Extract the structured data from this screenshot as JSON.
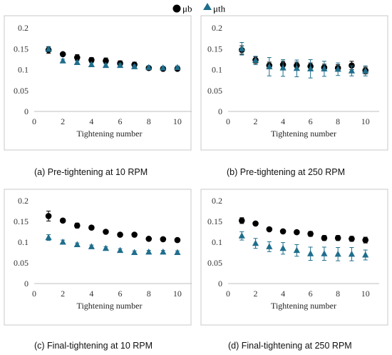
{
  "legend": {
    "items": [
      {
        "label": "μb",
        "marker": "circle",
        "color": "#000000"
      },
      {
        "label": "μth",
        "marker": "triangle",
        "color": "#1f6e8c"
      }
    ]
  },
  "colors": {
    "mu_b": "#000000",
    "mu_th": "#1f6e8c",
    "panel_border": "#bfbfbf",
    "axis": "#bfbfbf"
  },
  "chart_data": [
    {
      "type": "scatter",
      "caption": "(a)  Pre-tightening at 10 RPM",
      "xlabel": "Tightening number",
      "ylabel": "",
      "xlim": [
        0,
        11
      ],
      "ylim": [
        0,
        0.2
      ],
      "x_ticks": [
        0,
        2,
        4,
        6,
        8,
        10
      ],
      "y_ticks": [
        "0",
        "0.05",
        "0.1",
        "0.15",
        "0.2"
      ],
      "x": [
        1,
        2,
        3,
        4,
        5,
        6,
        7,
        8,
        9,
        10
      ],
      "series": [
        {
          "name": "μb",
          "values": [
            0.147,
            0.137,
            0.129,
            0.123,
            0.121,
            0.115,
            0.112,
            0.104,
            0.102,
            0.102
          ],
          "errors": [
            0.008,
            0.004,
            0.007,
            0.006,
            0.007,
            0.006,
            0.006,
            0.003,
            0.004,
            0.004
          ]
        },
        {
          "name": "μth",
          "values": [
            0.149,
            0.121,
            0.117,
            0.112,
            0.11,
            0.11,
            0.107,
            0.105,
            0.104,
            0.105
          ],
          "errors": [
            0.005,
            0.004,
            0.004,
            0.004,
            0.004,
            0.004,
            0.004,
            0.004,
            0.004,
            0.004
          ]
        }
      ]
    },
    {
      "type": "scatter",
      "caption": "(b)  Pre-tightening at 250 RPM",
      "xlabel": "Tightening number",
      "ylabel": "",
      "xlim": [
        0,
        11
      ],
      "ylim": [
        0,
        0.2
      ],
      "x_ticks": [
        0,
        2,
        4,
        6,
        8,
        10
      ],
      "y_ticks": [
        "0",
        "0.05",
        "0.1",
        "0.15",
        "0.2"
      ],
      "x": [
        1,
        2,
        3,
        4,
        5,
        6,
        7,
        8,
        9,
        10
      ],
      "series": [
        {
          "name": "μb",
          "values": [
            0.147,
            0.123,
            0.11,
            0.112,
            0.11,
            0.108,
            0.105,
            0.104,
            0.11,
            0.098
          ],
          "errors": [
            0.01,
            0.008,
            0.008,
            0.008,
            0.008,
            0.008,
            0.008,
            0.008,
            0.01,
            0.008
          ]
        },
        {
          "name": "μth",
          "values": [
            0.15,
            0.122,
            0.107,
            0.104,
            0.103,
            0.102,
            0.102,
            0.101,
            0.097,
            0.097
          ],
          "errors": [
            0.015,
            0.01,
            0.022,
            0.02,
            0.02,
            0.022,
            0.018,
            0.015,
            0.012,
            0.012
          ]
        }
      ]
    },
    {
      "type": "scatter",
      "caption": "(c)  Final-tightening at 10 RPM",
      "xlabel": "Tightening number",
      "ylabel": "",
      "xlim": [
        0,
        11
      ],
      "ylim": [
        0,
        0.2
      ],
      "x_ticks": [
        0,
        2,
        4,
        6,
        8,
        10
      ],
      "y_ticks": [
        "0",
        "0.05",
        "0.1",
        "0.15",
        "0.2"
      ],
      "x": [
        1,
        2,
        3,
        4,
        5,
        6,
        7,
        8,
        9,
        10
      ],
      "series": [
        {
          "name": "μb",
          "values": [
            0.163,
            0.152,
            0.14,
            0.135,
            0.125,
            0.118,
            0.118,
            0.108,
            0.107,
            0.105
          ],
          "errors": [
            0.012,
            0.004,
            0.006,
            0.004,
            0.004,
            0.004,
            0.004,
            0.004,
            0.004,
            0.004
          ]
        },
        {
          "name": "μth",
          "values": [
            0.111,
            0.1,
            0.094,
            0.089,
            0.085,
            0.08,
            0.075,
            0.076,
            0.076,
            0.075
          ],
          "errors": [
            0.007,
            0.005,
            0.004,
            0.004,
            0.004,
            0.004,
            0.004,
            0.004,
            0.004,
            0.004
          ]
        }
      ]
    },
    {
      "type": "scatter",
      "caption": "(d)  Final-tightening at 250 RPM",
      "xlabel": "Tightening number",
      "ylabel": "",
      "xlim": [
        0,
        11
      ],
      "ylim": [
        0,
        0.2
      ],
      "x_ticks": [
        0,
        2,
        4,
        6,
        8,
        10
      ],
      "y_ticks": [
        "0",
        "0.05",
        "0.1",
        "0.15",
        "0.2"
      ],
      "x": [
        1,
        2,
        3,
        4,
        5,
        6,
        7,
        8,
        9,
        10
      ],
      "series": [
        {
          "name": "μb",
          "values": [
            0.152,
            0.145,
            0.131,
            0.126,
            0.124,
            0.12,
            0.11,
            0.11,
            0.108,
            0.105
          ],
          "errors": [
            0.007,
            0.004,
            0.004,
            0.004,
            0.004,
            0.006,
            0.006,
            0.006,
            0.006,
            0.007
          ]
        },
        {
          "name": "μth",
          "values": [
            0.115,
            0.097,
            0.089,
            0.085,
            0.08,
            0.072,
            0.072,
            0.071,
            0.071,
            0.069
          ],
          "errors": [
            0.01,
            0.012,
            0.012,
            0.014,
            0.014,
            0.016,
            0.016,
            0.016,
            0.016,
            0.012
          ]
        }
      ]
    }
  ]
}
